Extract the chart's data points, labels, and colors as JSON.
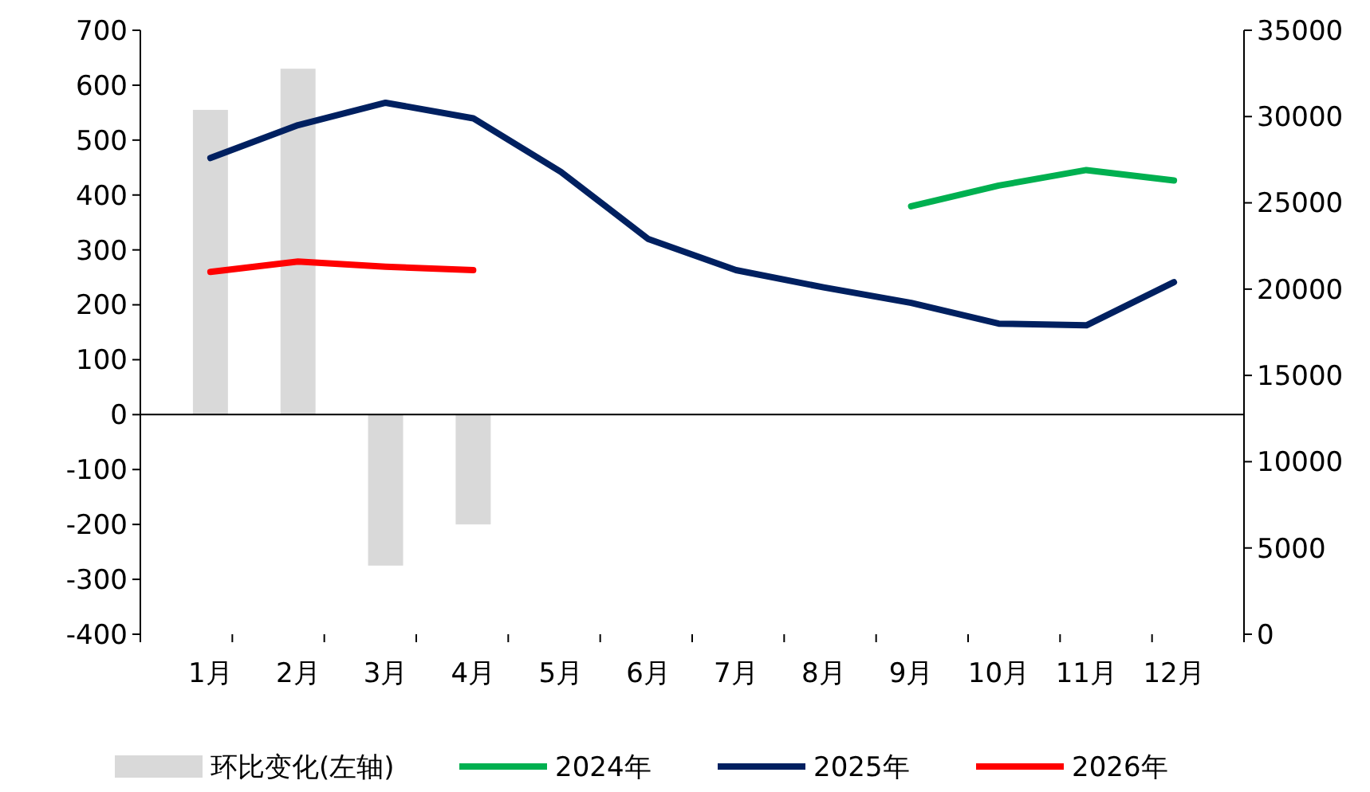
{
  "chart_data": {
    "type": "bar",
    "categories": [
      "1月",
      "2月",
      "3月",
      "4月",
      "5月",
      "6月",
      "7月",
      "8月",
      "9月",
      "10月",
      "11月",
      "12月"
    ],
    "series": [
      {
        "name": "环比变化(左轴)",
        "color": "#d9d9d9",
        "values": [
          555,
          630,
          -275,
          -200,
          null,
          null,
          null,
          null,
          null,
          null,
          null,
          null
        ]
      },
      {
        "name": "2024年",
        "type": "line",
        "axis": "y2",
        "color": "#00b050",
        "values": [
          null,
          null,
          null,
          null,
          null,
          null,
          null,
          null,
          24800,
          26000,
          26900,
          26300
        ]
      },
      {
        "name": "2025年",
        "type": "line",
        "axis": "y2",
        "color": "#002060",
        "values": [
          27600,
          29500,
          30800,
          29900,
          26800,
          22900,
          21100,
          20100,
          19200,
          18000,
          17900,
          20400
        ]
      },
      {
        "name": "2026年",
        "type": "line",
        "axis": "y2",
        "color": "#ff0000",
        "values": [
          21000,
          21600,
          21300,
          21100,
          null,
          null,
          null,
          null,
          null,
          null,
          null,
          null
        ]
      }
    ],
    "ylim": [
      -400,
      700
    ],
    "yticks": [
      -400,
      -300,
      -200,
      -100,
      0,
      100,
      200,
      300,
      400,
      500,
      600,
      700
    ],
    "y2lim": [
      0,
      35000
    ],
    "y2ticks": [
      0,
      5000,
      10000,
      15000,
      20000,
      25000,
      30000,
      35000
    ],
    "legend": "bottom"
  }
}
